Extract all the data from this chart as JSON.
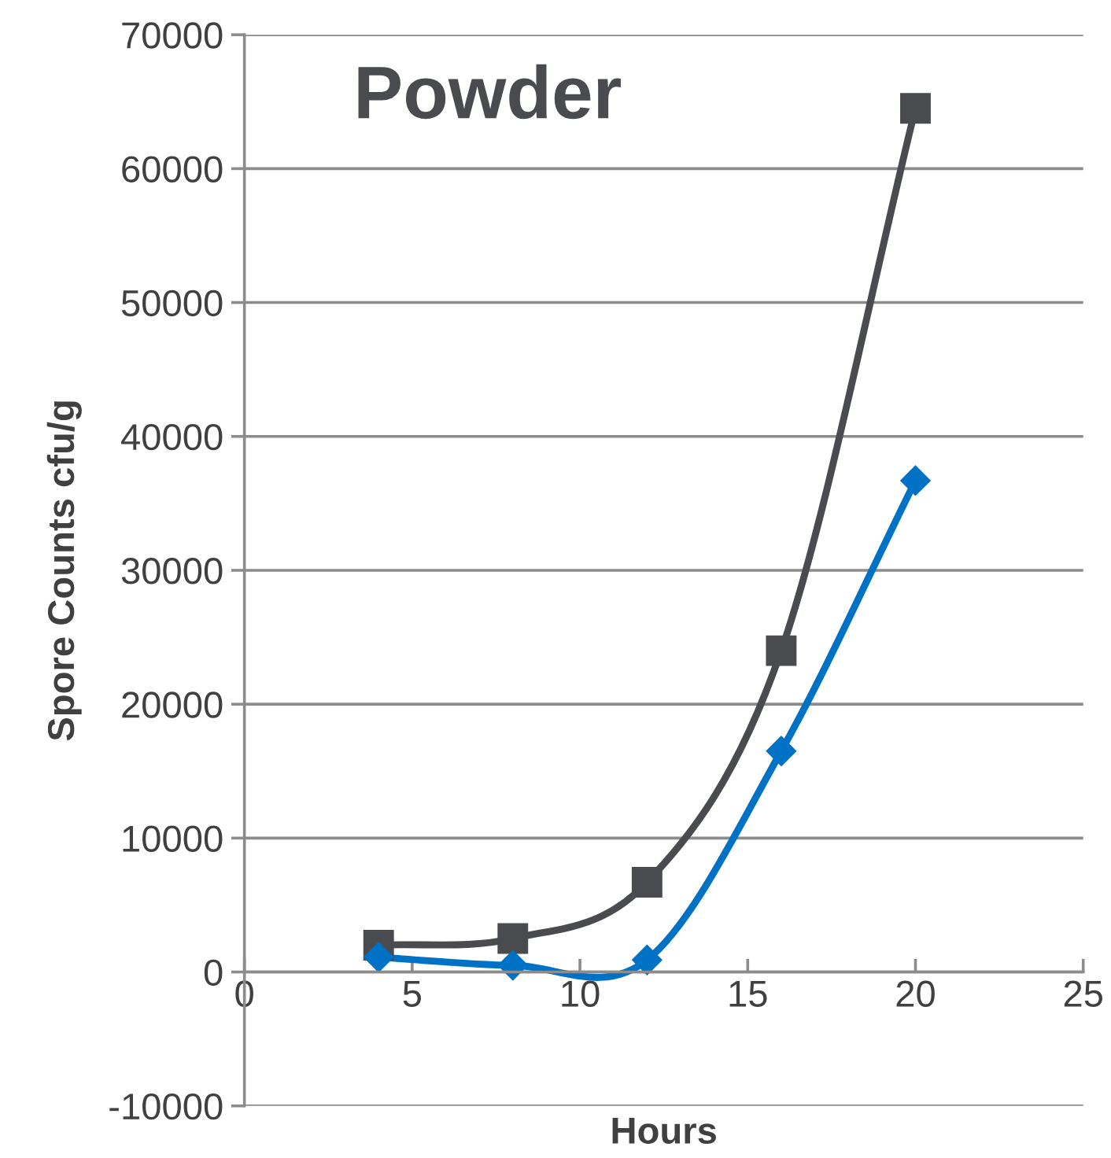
{
  "chart_data": {
    "type": "line",
    "title": "Powder",
    "xlabel": "Hours",
    "ylabel": "Spore Counts cfu/g",
    "x": [
      4,
      8,
      12,
      16,
      20
    ],
    "series": [
      {
        "color": "#4a4b4f",
        "marker": "square",
        "values": [
          2000,
          2500,
          6700,
          24000,
          64500
        ]
      },
      {
        "color": "#0072c6",
        "marker": "diamond",
        "values": [
          1100,
          500,
          900,
          16500,
          36700
        ]
      }
    ],
    "xlim": [
      0,
      25
    ],
    "xticks": [
      0,
      5,
      10,
      15,
      20,
      25
    ],
    "ylim": [
      -10000,
      70000
    ],
    "yticks": [
      -10000,
      0,
      10000,
      20000,
      30000,
      40000,
      50000,
      60000,
      70000
    ],
    "grid": "y",
    "line_style": "solid"
  }
}
